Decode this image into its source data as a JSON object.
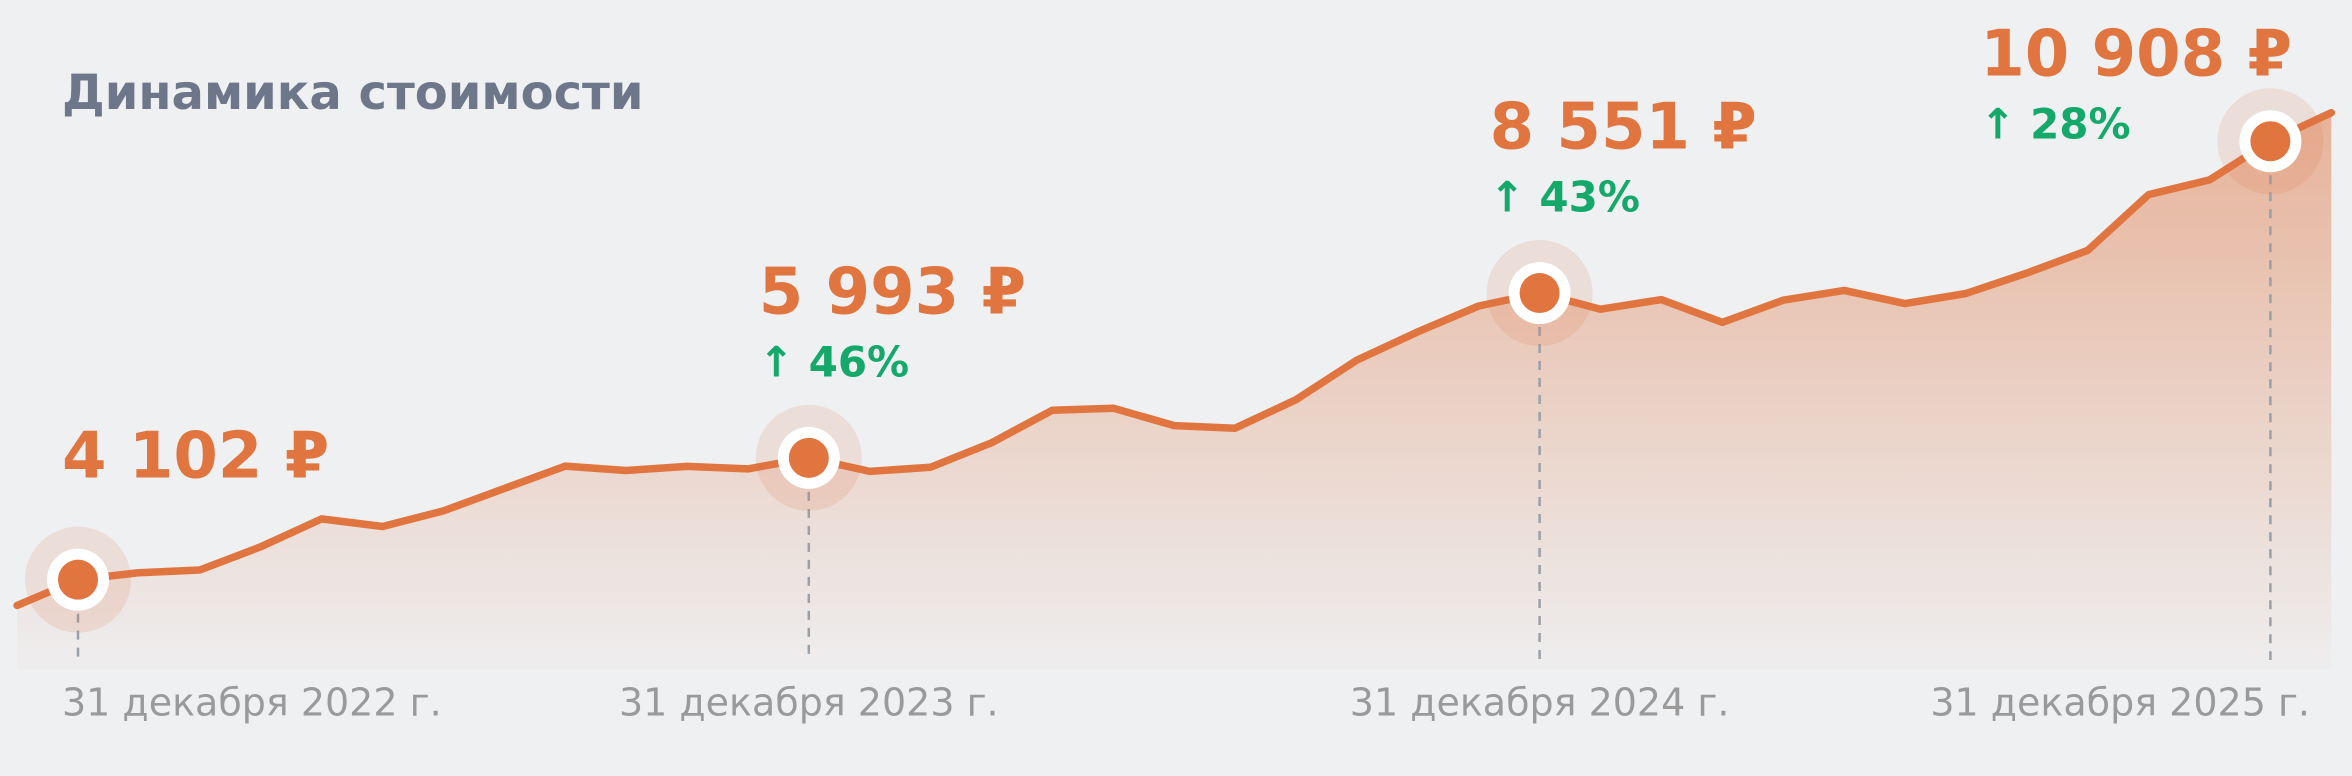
{
  "chart_data": {
    "type": "area",
    "title": "Динамика стоимости",
    "color": "#e07540",
    "categories": [
      null,
      "31 декабря 2022 г.",
      null,
      null,
      null,
      null,
      null,
      null,
      null,
      null,
      null,
      null,
      null,
      "31 декабря 2023 г.",
      null,
      null,
      null,
      null,
      null,
      null,
      null,
      null,
      null,
      null,
      null,
      "31 декабря 2024 г.",
      null,
      null,
      null,
      null,
      null,
      null,
      null,
      null,
      null,
      null,
      null,
      "31 декабря 2025 г.",
      null
    ],
    "values": [
      3702,
      4102,
      4210,
      4252,
      4612,
      5045,
      4927,
      5169,
      5518,
      5865,
      5797,
      5860,
      5821,
      5993,
      5783,
      5848,
      6226,
      6733,
      6764,
      6494,
      6454,
      6896,
      7511,
      7950,
      8350,
      8551,
      8300,
      8450,
      8095,
      8440,
      8593,
      8388,
      8544,
      8861,
      9213,
      10079,
      10307,
      10908,
      11350
    ],
    "value_labels": [
      null,
      "4 102 ₽",
      null,
      null,
      null,
      null,
      null,
      null,
      null,
      null,
      null,
      null,
      null,
      "5 993 ₽",
      null,
      null,
      null,
      null,
      null,
      null,
      null,
      null,
      null,
      null,
      null,
      "8 551 ₽",
      null,
      null,
      null,
      null,
      null,
      null,
      null,
      null,
      null,
      null,
      null,
      "10 908 ₽",
      null
    ],
    "change_labels": [
      null,
      null,
      null,
      null,
      null,
      null,
      null,
      null,
      null,
      null,
      null,
      null,
      null,
      "↑ 46%",
      null,
      null,
      null,
      null,
      null,
      null,
      null,
      null,
      null,
      null,
      null,
      "↑ 43%",
      null,
      null,
      null,
      null,
      null,
      null,
      null,
      null,
      null,
      null,
      null,
      "↑ 28%",
      null
    ],
    "ylim": [
      2700,
      13100
    ]
  }
}
